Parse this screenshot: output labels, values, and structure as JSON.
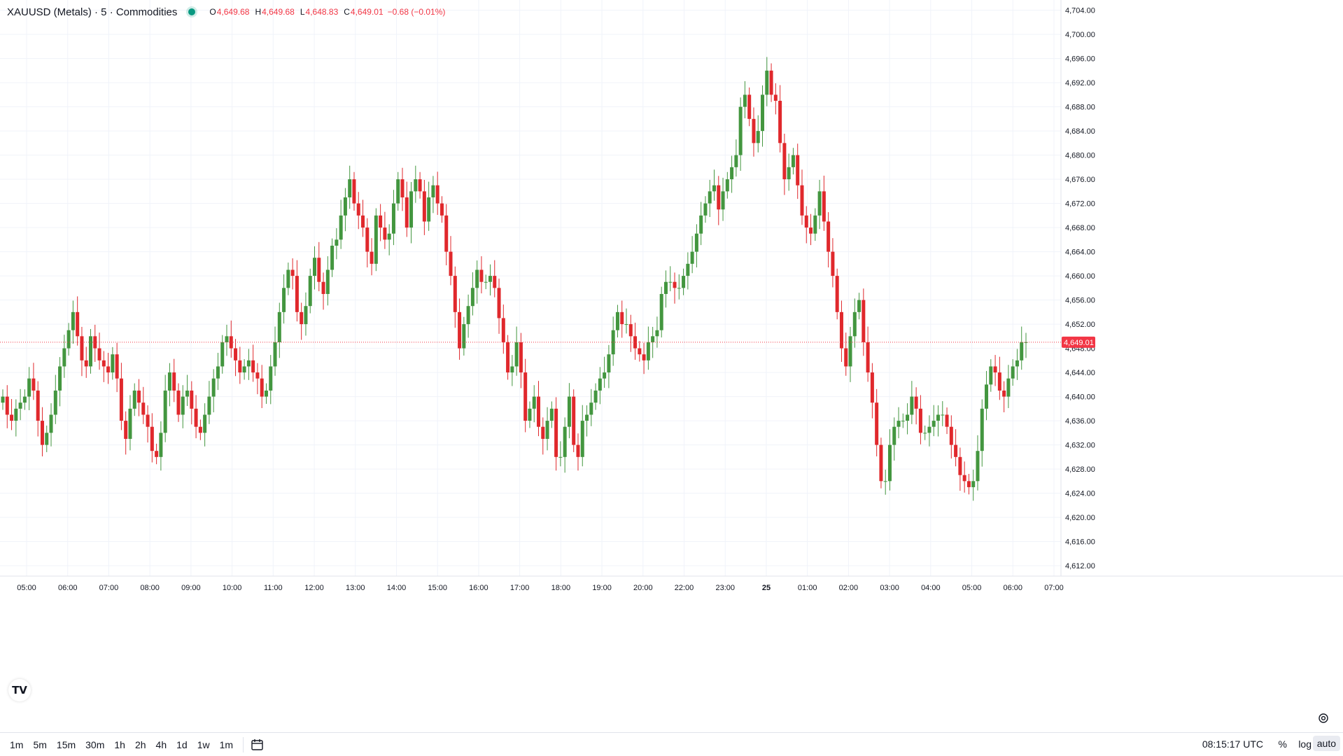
{
  "header": {
    "symbol": "XAUUSD (Metals) · 5 · Commodities",
    "o_label": "O",
    "o_value": "4,649.68",
    "h_label": "H",
    "h_value": "4,649.68",
    "l_label": "L",
    "l_value": "4,648.83",
    "c_label": "C",
    "c_value": "4,649.01",
    "change": "−0.68 (−0.01%)"
  },
  "colors": {
    "up": "#26a69a",
    "up_body": "#43963f",
    "down": "#f23645",
    "down_body": "#e0282c",
    "grid": "#f0f3fa",
    "axis_text": "#131722"
  },
  "chart_data": {
    "type": "candlestick",
    "y_ticks": [
      "4,612.00",
      "4,616.00",
      "4,620.00",
      "4,624.00",
      "4,628.00",
      "4,632.00",
      "4,636.00",
      "4,640.00",
      "4,644.00",
      "4,648.00",
      "4,652.00",
      "4,656.00",
      "4,660.00",
      "4,664.00",
      "4,668.00",
      "4,672.00",
      "4,676.00",
      "4,680.00",
      "4,684.00",
      "4,688.00",
      "4,692.00",
      "4,696.00",
      "4,700.00",
      "4,704.00"
    ],
    "y_range": [
      4610.5,
      4705
    ],
    "x_ticks": [
      "05:00",
      "06:00",
      "07:00",
      "08:00",
      "09:00",
      "10:00",
      "11:00",
      "12:00",
      "13:00",
      "14:00",
      "15:00",
      "16:00",
      "17:00",
      "18:00",
      "19:00",
      "20:00",
      "22:00",
      "23:00",
      "25",
      "01:00",
      "02:00",
      "03:00",
      "04:00",
      "05:00",
      "06:00",
      "07:00"
    ],
    "last_price": "4,649.01",
    "series_close": [
      4640,
      4637,
      4636,
      4638,
      4639,
      4640,
      4643,
      4641,
      4636,
      4632,
      4634,
      4637,
      4641,
      4645,
      4648,
      4651,
      4654,
      4650,
      4646,
      4645,
      4650,
      4648,
      4646,
      4645,
      4644,
      4647,
      4643,
      4636,
      4633,
      4638,
      4641,
      4639,
      4637,
      4635,
      4631,
      4630,
      4634,
      4641,
      4644,
      4641,
      4637,
      4640,
      4641,
      4638,
      4635,
      4634,
      4637,
      4640,
      4643,
      4645,
      4649,
      4650,
      4648,
      4646,
      4644,
      4645,
      4646,
      4644,
      4643,
      4640,
      4641,
      4645,
      4649,
      4654,
      4658,
      4661,
      4660,
      4654,
      4652,
      4655,
      4660,
      4663,
      4659,
      4657,
      4661,
      4665,
      4666,
      4670,
      4673,
      4676,
      4672,
      4670,
      4668,
      4664,
      4662,
      4670,
      4668,
      4666,
      4667,
      4672,
      4676,
      4673,
      4668,
      4674,
      4676,
      4674,
      4669,
      4673,
      4675,
      4672,
      4670,
      4664,
      4660,
      4654,
      4648,
      4652,
      4655,
      4658,
      4661,
      4659,
      4659,
      4660,
      4658,
      4653,
      4649,
      4644,
      4645,
      4649,
      4644,
      4636,
      4638,
      4640,
      4635,
      4633,
      4636,
      4638,
      4630,
      4630,
      4635,
      4640,
      4632,
      4630,
      4636,
      4637,
      4639,
      4641,
      4643,
      4644,
      4647,
      4651,
      4654,
      4652,
      4652,
      4650,
      4648,
      4647,
      4646,
      4649,
      4650,
      4651,
      4657,
      4659,
      4659,
      4658,
      4658,
      4660,
      4662,
      4664,
      4667,
      4670,
      4672,
      4674,
      4675,
      4671,
      4674,
      4676,
      4678,
      4680,
      4688,
      4690,
      4686,
      4682,
      4684,
      4690,
      4694,
      4690,
      4689,
      4682,
      4676,
      4678,
      4680,
      4675,
      4670,
      4668,
      4667,
      4670,
      4674,
      4669,
      4664,
      4660,
      4654,
      4648,
      4645,
      4650,
      4654,
      4656,
      4649,
      4644,
      4639,
      4632,
      4626,
      4626,
      4632,
      4635,
      4636,
      4636,
      4637,
      4640,
      4638,
      4634,
      4634,
      4635,
      4636,
      4637,
      4637,
      4635,
      4632,
      4630,
      4627,
      4626,
      4625,
      4626,
      4631,
      4638,
      4642,
      4645,
      4644,
      4641,
      4640,
      4643,
      4645,
      4646,
      4649,
      4649.01
    ]
  },
  "bottom": {
    "timeframes": [
      "1m",
      "5m",
      "15m",
      "30m",
      "1h",
      "2h",
      "4h",
      "1d",
      "1w",
      "1m"
    ],
    "clock": "08:15:17 UTC",
    "pct": "%",
    "log": "log",
    "auto": "auto"
  },
  "logo_text": "TV"
}
